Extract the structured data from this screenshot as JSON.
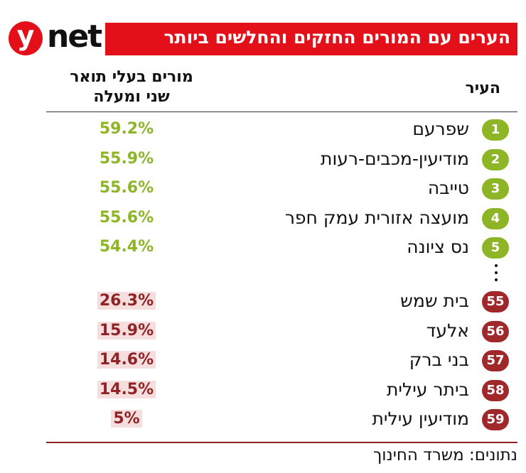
{
  "header": {
    "logo_letter": "y",
    "logo_text": "net",
    "title": "הערים עם המורים החזקים והחלשים ביותר"
  },
  "table": {
    "columns": {
      "city": "העיר",
      "value_line1": "מורים בעלי תואר",
      "value_line2": "שני ומעלה"
    },
    "groups": [
      {
        "rows": [
          {
            "rank": "1",
            "city": "שפרעם",
            "value": "59.2%"
          },
          {
            "rank": "2",
            "city": "מודיעין-מכבים-רעות",
            "value": "55.9%"
          },
          {
            "rank": "3",
            "city": "טייבה",
            "value": "55.6%"
          },
          {
            "rank": "4",
            "city": "מועצה אזורית עמק חפר",
            "value": "55.6%"
          },
          {
            "rank": "5",
            "city": "נס ציונה",
            "value": "54.4%"
          }
        ]
      },
      {
        "rows": [
          {
            "rank": "55",
            "city": "בית שמש",
            "value": "26.3%"
          },
          {
            "rank": "56",
            "city": "אלעד",
            "value": "15.9%"
          },
          {
            "rank": "57",
            "city": "בני ברק",
            "value": "14.6%"
          },
          {
            "rank": "58",
            "city": "ביתר עילית",
            "value": "14.5%"
          },
          {
            "rank": "59",
            "city": "מודיעין עילית",
            "value": "5%"
          }
        ]
      }
    ]
  },
  "footer": {
    "source": "נתונים: משרד החינוך"
  }
}
